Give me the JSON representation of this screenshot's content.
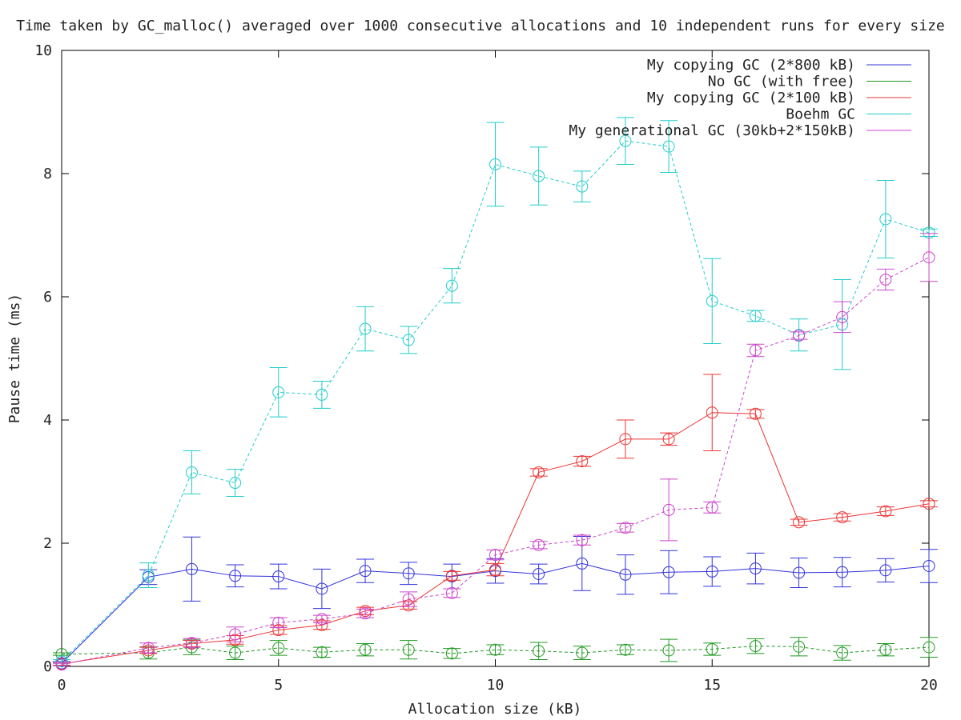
{
  "chart_data": {
    "type": "line",
    "title": "Time taken by GC_malloc() averaged over 1000 consecutive allocations and 10 independent runs for every size",
    "xlabel": "Allocation size (kB)",
    "ylabel": "Pause time (ms)",
    "xlim": [
      0,
      20
    ],
    "ylim": [
      0,
      10
    ],
    "xticks": [
      0,
      5,
      10,
      15,
      20
    ],
    "yticks": [
      0,
      2,
      4,
      6,
      8,
      10
    ],
    "xtick_labels": [
      "0",
      "5",
      "10",
      "15",
      "20"
    ],
    "ytick_labels": [
      "0",
      "2",
      "4",
      "6",
      "8",
      "10"
    ],
    "grid": false,
    "legend_position": "top-right",
    "series": [
      {
        "name": "My copying GC (2*800 kB)",
        "color": "#3333dd",
        "dashed": false,
        "x": [
          0,
          2,
          3,
          4,
          5,
          6,
          7,
          8,
          9,
          10,
          11,
          12,
          13,
          14,
          15,
          16,
          17,
          18,
          19,
          20
        ],
        "y": [
          0.05,
          1.45,
          1.58,
          1.47,
          1.46,
          1.26,
          1.55,
          1.51,
          1.46,
          1.55,
          1.5,
          1.67,
          1.49,
          1.53,
          1.54,
          1.59,
          1.52,
          1.53,
          1.56,
          1.63
        ],
        "err": [
          0.03,
          0.12,
          0.52,
          0.18,
          0.2,
          0.32,
          0.19,
          0.18,
          0.2,
          0.2,
          0.16,
          0.44,
          0.32,
          0.35,
          0.24,
          0.25,
          0.24,
          0.24,
          0.19,
          0.27
        ]
      },
      {
        "name": "No GC (with free)",
        "color": "#229922",
        "dashed": true,
        "x": [
          0,
          2,
          3,
          4,
          5,
          6,
          7,
          8,
          9,
          10,
          11,
          12,
          13,
          14,
          15,
          16,
          17,
          18,
          19,
          20
        ],
        "y": [
          0.2,
          0.22,
          0.31,
          0.22,
          0.3,
          0.23,
          0.27,
          0.27,
          0.21,
          0.27,
          0.25,
          0.22,
          0.27,
          0.26,
          0.28,
          0.33,
          0.32,
          0.22,
          0.27,
          0.31
        ],
        "err": [
          0.02,
          0.1,
          0.12,
          0.11,
          0.12,
          0.08,
          0.1,
          0.15,
          0.08,
          0.08,
          0.14,
          0.11,
          0.08,
          0.18,
          0.1,
          0.12,
          0.15,
          0.12,
          0.1,
          0.16
        ]
      },
      {
        "name": "My copying GC (2*100 kB)",
        "color": "#ee3333",
        "dashed": false,
        "x": [
          0,
          2,
          3,
          4,
          5,
          6,
          7,
          8,
          9,
          10,
          11,
          12,
          13,
          14,
          15,
          16,
          17,
          18,
          19,
          20
        ],
        "y": [
          0.04,
          0.26,
          0.37,
          0.43,
          0.59,
          0.67,
          0.9,
          0.99,
          1.47,
          1.57,
          3.15,
          3.33,
          3.69,
          3.69,
          4.12,
          4.1,
          2.34,
          2.42,
          2.52,
          2.64
        ],
        "err": [
          0.02,
          0.05,
          0.05,
          0.07,
          0.07,
          0.07,
          0.06,
          0.06,
          0.07,
          0.1,
          0.06,
          0.08,
          0.31,
          0.1,
          0.62,
          0.07,
          0.05,
          0.06,
          0.07,
          0.05
        ]
      },
      {
        "name": "Boehm GC",
        "color": "#22cccc",
        "dashed": true,
        "x": [
          0,
          2,
          3,
          4,
          5,
          6,
          7,
          8,
          9,
          10,
          11,
          12,
          13,
          14,
          15,
          16,
          17,
          18,
          19,
          20
        ],
        "y": [
          0.08,
          1.48,
          3.15,
          2.98,
          4.45,
          4.41,
          5.48,
          5.3,
          6.18,
          8.15,
          7.96,
          7.79,
          8.53,
          8.44,
          5.93,
          5.69,
          5.38,
          5.55,
          7.26,
          7.04
        ],
        "err": [
          0.03,
          0.2,
          0.35,
          0.22,
          0.4,
          0.22,
          0.36,
          0.22,
          0.28,
          0.68,
          0.47,
          0.25,
          0.38,
          0.42,
          0.69,
          0.09,
          0.26,
          0.73,
          0.63,
          0.06
        ]
      },
      {
        "name": "My generational GC (30kb+2*150kB)",
        "color": "#cc44cc",
        "dashed": true,
        "x": [
          0,
          2,
          3,
          4,
          5,
          6,
          7,
          8,
          9,
          10,
          11,
          12,
          13,
          14,
          15,
          16,
          17,
          18,
          19,
          20
        ],
        "y": [
          0.03,
          0.3,
          0.38,
          0.52,
          0.71,
          0.77,
          0.86,
          1.09,
          1.19,
          1.81,
          1.97,
          2.05,
          2.25,
          2.54,
          2.58,
          5.13,
          5.37,
          5.67,
          6.28,
          6.64
        ],
        "err": [
          0.02,
          0.08,
          0.07,
          0.12,
          0.08,
          0.06,
          0.07,
          0.12,
          0.07,
          0.08,
          0.06,
          0.08,
          0.07,
          0.5,
          0.09,
          0.1,
          0.06,
          0.25,
          0.17,
          0.39
        ]
      }
    ]
  }
}
